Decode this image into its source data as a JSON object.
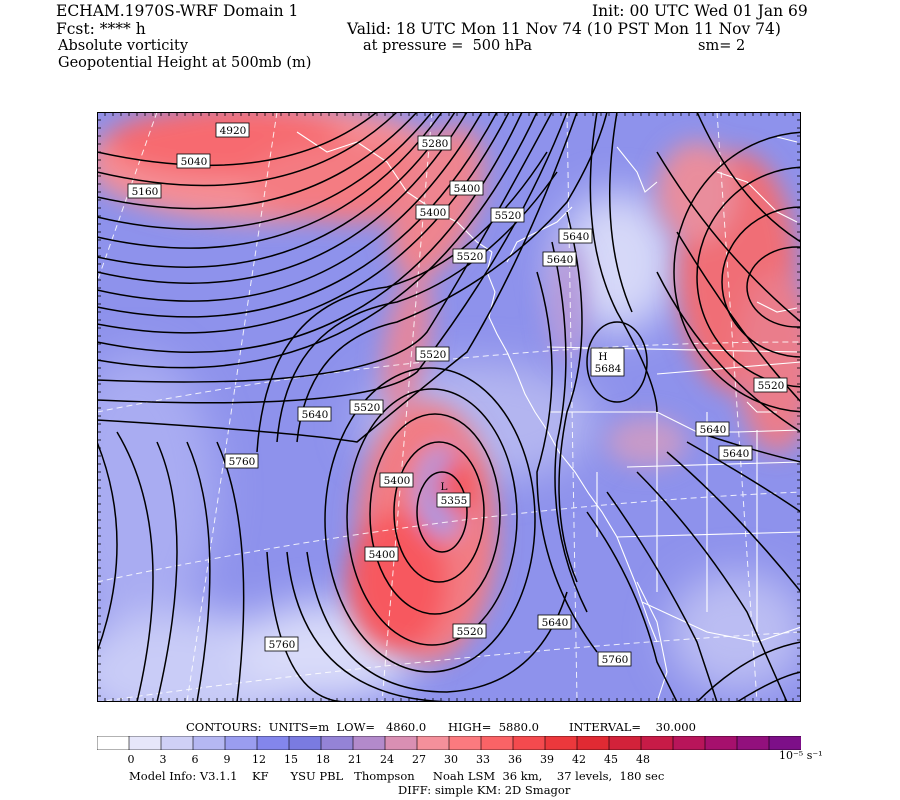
{
  "header": {
    "model_title": "ECHAM.1970S-WRF Domain 1",
    "forecast": "Fcst: **** h",
    "init": "Init: 00 UTC Wed 01 Jan 69",
    "valid": "Valid: 18 UTC Mon 11 Nov 74 (10 PST Mon 11 Nov 74)",
    "field1_name": "Absolute vorticity",
    "field1_level": "at pressure =  500 hPa",
    "field1_smooth": "sm= 2",
    "field2_name": "Geopotential Height at 500mb (m)"
  },
  "map": {
    "shading_field": "Absolute vorticity",
    "contour_field": "Geopotential Height at 500mb",
    "contour_labels": [
      "4920",
      "5040",
      "5160",
      "5280",
      "5400",
      "5400",
      "5520",
      "5640",
      "5640",
      "5520",
      "5520",
      "5520",
      "5640",
      "5760",
      "5400",
      "5400",
      "5520",
      "5640",
      "5760",
      "5760",
      "5520",
      "5640",
      "5640"
    ],
    "high_center": {
      "letter": "H",
      "value": "5684"
    },
    "low_center": {
      "letter": "L",
      "value": "5355"
    }
  },
  "contour_info": {
    "contours": "CONTOURS:  UNITS=m  LOW=   4860.0",
    "high": "HIGH=  5880.0",
    "interval": "INTERVAL=    30.000"
  },
  "colorbar": {
    "ticks": [
      "0",
      "3",
      "6",
      "9",
      "12",
      "15",
      "18",
      "21",
      "24",
      "27",
      "30",
      "33",
      "36",
      "39",
      "42",
      "45",
      "48"
    ],
    "units": "10⁻⁵ s⁻¹",
    "colors": [
      "#ffffff",
      "#e6e6fa",
      "#cfd0f6",
      "#b5b7f2",
      "#9a9df0",
      "#8386ec",
      "#7a7be0",
      "#9483d6",
      "#b38acb",
      "#d98fb3",
      "#f4909b",
      "#fb7a7f",
      "#fa6366",
      "#f44a4e",
      "#ec383c",
      "#e02a33",
      "#d2223a",
      "#c71b47",
      "#b8155a",
      "#a6106d",
      "#92107d",
      "#7d0f88"
    ]
  },
  "model_info": {
    "line1": "Model Info: V3.1.1    KF      YSU PBL   Thompson     Noah LSM  36 km,    37 levels,  180 sec",
    "line2": "DIFF: simple KM: 2D Smagor"
  }
}
